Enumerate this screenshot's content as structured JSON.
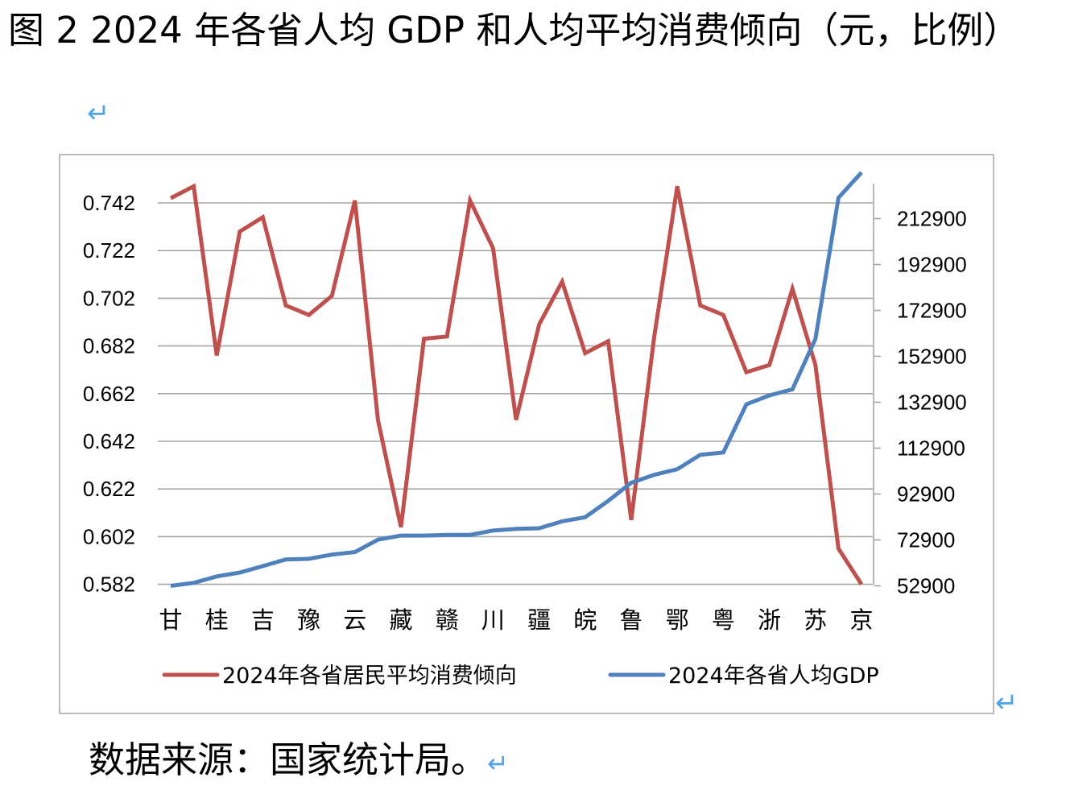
{
  "header": {
    "title": "图 2 2024 年各省人均 GDP 和人均平均消费倾向（元，比例）",
    "paragraph_mark": "↵"
  },
  "footer": {
    "source": "数据来源：国家统计局。"
  },
  "colors": {
    "consumption": "#c0504d",
    "gdp": "#4f81bd",
    "grid": "#a6a6a6",
    "frame": "#a6a6a6",
    "paragraph_mark": "#4ea3ea"
  },
  "chart_data": {
    "type": "line",
    "categories": [
      "甘",
      "",
      "桂",
      "",
      "吉",
      "",
      "豫",
      "",
      "云",
      "",
      "藏",
      "",
      "赣",
      "",
      "川",
      "",
      "疆",
      "",
      "皖",
      "",
      "鲁",
      "",
      "鄂",
      "",
      "粤",
      "",
      "浙",
      "",
      "苏",
      "",
      "京"
    ],
    "series": [
      {
        "name": "2024年各省居民平均消费倾向",
        "axis": "left",
        "color": "#c0504d",
        "values": [
          0.744,
          0.749,
          0.678,
          0.73,
          0.736,
          0.699,
          0.695,
          0.703,
          0.743,
          0.651,
          0.606,
          0.685,
          0.686,
          0.743,
          0.723,
          0.651,
          0.691,
          0.709,
          0.679,
          0.684,
          0.609,
          0.686,
          0.749,
          0.699,
          0.695,
          0.671,
          0.674,
          0.706,
          0.674,
          0.597,
          0.582
        ]
      },
      {
        "name": "2024年各省人均GDP",
        "axis": "right",
        "color": "#4f81bd",
        "values": [
          52900,
          54200,
          57000,
          58700,
          61500,
          64400,
          64700,
          66500,
          67600,
          73000,
          74800,
          74800,
          75100,
          75100,
          77000,
          77700,
          78000,
          81000,
          82800,
          89900,
          97800,
          101300,
          103700,
          110000,
          111000,
          132000,
          135900,
          138500,
          160500,
          222000,
          233000
        ]
      }
    ],
    "y_left": {
      "ticks": [
        "0.742",
        "0.722",
        "0.702",
        "0.682",
        "0.662",
        "0.642",
        "0.622",
        "0.602",
        "0.582"
      ],
      "range": [
        0.582,
        0.749
      ]
    },
    "y_right": {
      "ticks": [
        "212900",
        "192900",
        "172900",
        "152900",
        "132900",
        "112900",
        "92900",
        "72900",
        "52900"
      ],
      "range": [
        52900,
        232900
      ]
    },
    "grid": true,
    "legend_position": "bottom"
  }
}
